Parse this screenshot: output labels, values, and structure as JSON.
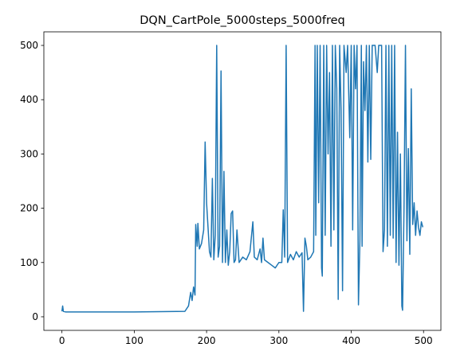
{
  "chart_data": {
    "type": "line",
    "title": "DQN_CartPole_5000steps_5000freq",
    "series": [
      {
        "color": "#1f77b4",
        "x": [
          0,
          1,
          2,
          5,
          40,
          100,
          170,
          175,
          178,
          180,
          182,
          184,
          185,
          187,
          188,
          190,
          193,
          196,
          198,
          200,
          202,
          204,
          206,
          208,
          210,
          212,
          214,
          216,
          218,
          220,
          222,
          224,
          226,
          228,
          230,
          232,
          234,
          236,
          238,
          240,
          242,
          245,
          250,
          255,
          260,
          264,
          266,
          270,
          274,
          276,
          278,
          280,
          285,
          290,
          295,
          300,
          304,
          306,
          308,
          310,
          312,
          316,
          320,
          324,
          328,
          332,
          334,
          336,
          338,
          340,
          344,
          348,
          350,
          351,
          353,
          355,
          357,
          359,
          360,
          362,
          364,
          366,
          368,
          370,
          372,
          374,
          376,
          378,
          380,
          382,
          384,
          386,
          388,
          390,
          393,
          395,
          398,
          400,
          402,
          404,
          406,
          408,
          410,
          412,
          414,
          415,
          417,
          419,
          421,
          423,
          425,
          427,
          429,
          433,
          436,
          438,
          442,
          444,
          446,
          448,
          450,
          452,
          454,
          456,
          458,
          460,
          462,
          464,
          466,
          468,
          470,
          471,
          473,
          475,
          477,
          479,
          481,
          483,
          485,
          487,
          489,
          491,
          493,
          495,
          497,
          499
        ],
        "values": [
          10,
          20,
          10,
          9,
          9,
          9,
          10,
          20,
          45,
          30,
          55,
          40,
          170,
          130,
          172,
          125,
          135,
          160,
          322,
          210,
          165,
          120,
          110,
          255,
          105,
          150,
          500,
          110,
          130,
          453,
          100,
          268,
          100,
          160,
          95,
          120,
          190,
          195,
          100,
          105,
          160,
          100,
          110,
          105,
          120,
          175,
          110,
          105,
          125,
          100,
          145,
          105,
          100,
          95,
          90,
          100,
          100,
          197,
          110,
          500,
          100,
          115,
          105,
          120,
          110,
          118,
          10,
          145,
          130,
          105,
          110,
          120,
          500,
          150,
          500,
          210,
          500,
          90,
          75,
          500,
          150,
          500,
          300,
          450,
          130,
          500,
          160,
          500,
          420,
          32,
          500,
          380,
          48,
          500,
          450,
          500,
          330,
          500,
          160,
          500,
          420,
          500,
          22,
          140,
          500,
          130,
          470,
          380,
          500,
          285,
          500,
          290,
          500,
          500,
          450,
          500,
          500,
          120,
          160,
          500,
          130,
          500,
          150,
          500,
          145,
          500,
          100,
          340,
          95,
          300,
          20,
          12,
          200,
          500,
          140,
          310,
          115,
          420,
          170,
          210,
          150,
          195,
          165,
          150,
          175,
          165
        ]
      }
    ],
    "xlim": [
      -25,
      524
    ],
    "ylim": [
      -25,
      525
    ],
    "xticks": [
      0,
      100,
      200,
      300,
      400,
      500
    ],
    "yticks": [
      0,
      100,
      200,
      300,
      400,
      500
    ],
    "grid": false
  }
}
